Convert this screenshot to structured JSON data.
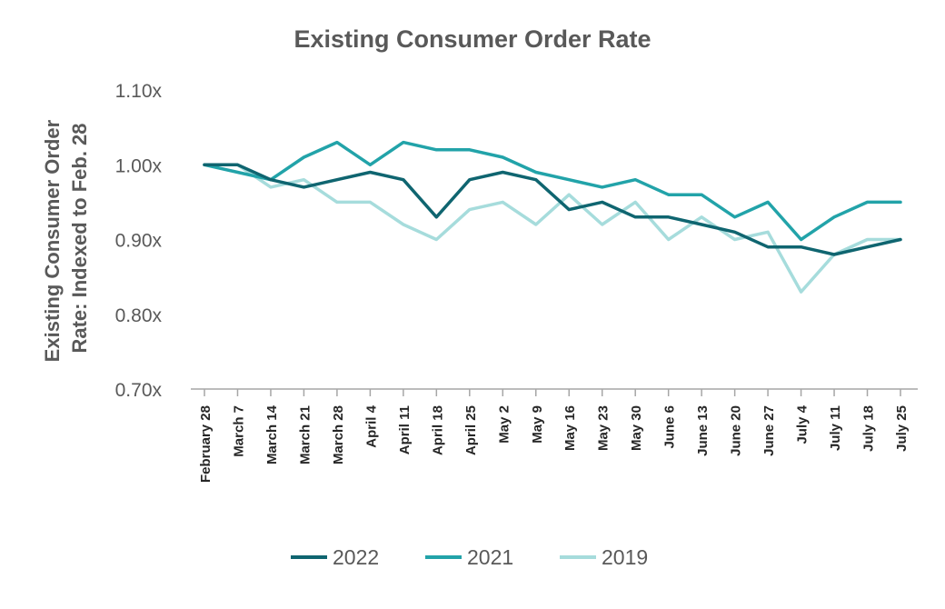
{
  "chart_data": {
    "type": "line",
    "title": "Existing Consumer Order Rate",
    "xlabel": "",
    "ylabel_lines": [
      "Existing Consumer Order",
      "Rate: Indexed to Feb. 28"
    ],
    "ylim": [
      0.7,
      1.1
    ],
    "yticks": [
      0.7,
      0.8,
      0.9,
      1.0,
      1.1
    ],
    "ytick_labels": [
      "0.70x",
      "0.80x",
      "0.90x",
      "1.00x",
      "1.10x"
    ],
    "grid": false,
    "legend_position": "bottom",
    "categories": [
      "February 28",
      "March 7",
      "March 14",
      "March 21",
      "March 28",
      "April 4",
      "April 11",
      "April 18",
      "April 25",
      "May 2",
      "May 9",
      "May 16",
      "May 23",
      "May 30",
      "June 6",
      "June 13",
      "June 20",
      "June 27",
      "July 4",
      "July 11",
      "July 18",
      "July 25"
    ],
    "series": [
      {
        "name": "2022",
        "color": "#0f6570",
        "values": [
          1.0,
          1.0,
          0.98,
          0.97,
          0.98,
          0.99,
          0.98,
          0.93,
          0.98,
          0.99,
          0.98,
          0.94,
          0.95,
          0.93,
          0.93,
          0.92,
          0.91,
          0.89,
          0.89,
          0.88,
          0.89,
          0.9
        ]
      },
      {
        "name": "2021",
        "color": "#22a3a9",
        "values": [
          1.0,
          0.99,
          0.98,
          1.01,
          1.03,
          1.0,
          1.03,
          1.02,
          1.02,
          1.01,
          0.99,
          0.98,
          0.97,
          0.98,
          0.96,
          0.96,
          0.93,
          0.95,
          0.9,
          0.93,
          0.95,
          0.95
        ]
      },
      {
        "name": "2019",
        "color": "#a6dcdc",
        "values": [
          1.0,
          1.0,
          0.97,
          0.98,
          0.95,
          0.95,
          0.92,
          0.9,
          0.94,
          0.95,
          0.92,
          0.96,
          0.92,
          0.95,
          0.9,
          0.93,
          0.9,
          0.91,
          0.83,
          0.88,
          0.9,
          0.9
        ]
      }
    ]
  }
}
